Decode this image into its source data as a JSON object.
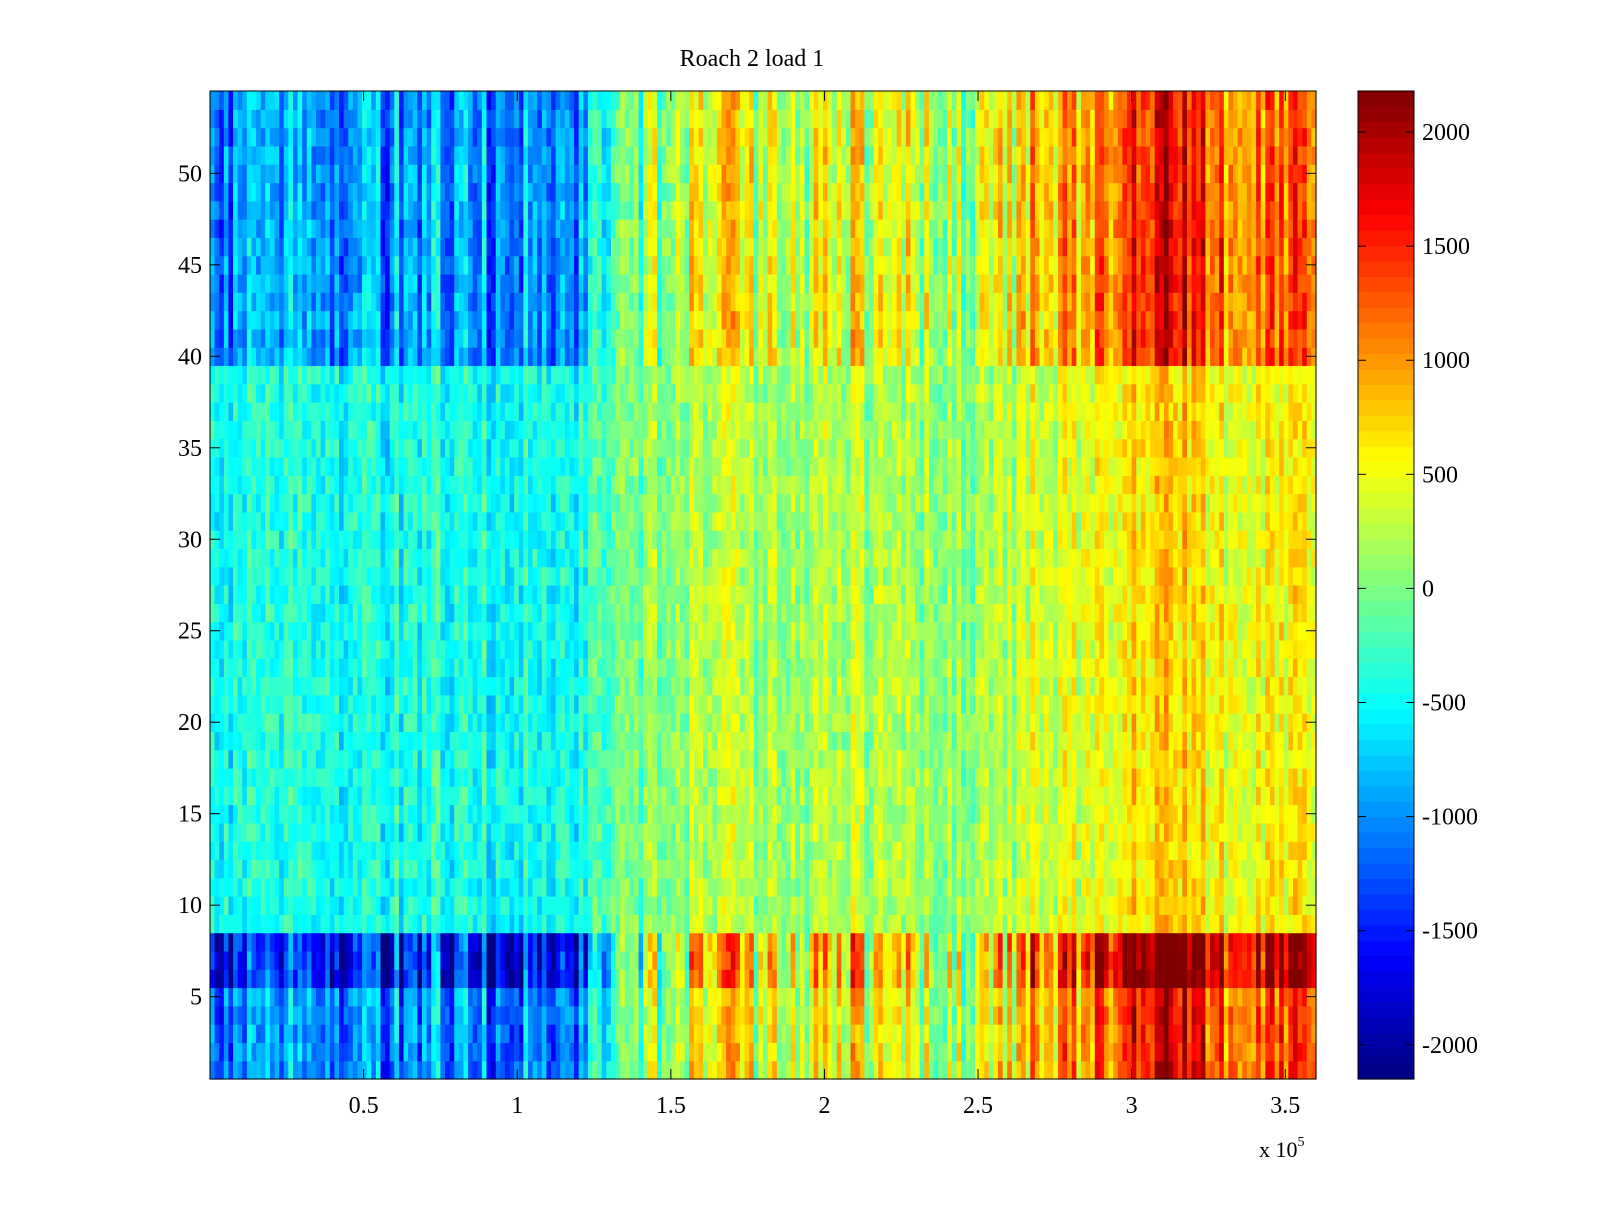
{
  "chart_data": {
    "type": "heatmap",
    "title": "Roach 2 load 1",
    "xlabel": "",
    "ylabel": "",
    "x_multiplier_label": "x 10",
    "x_multiplier_exponent": "5",
    "xlim": [
      0,
      3.6
    ],
    "ylim": [
      0.5,
      54.5
    ],
    "x_ticks": [
      {
        "value": 0.5,
        "label": "0.5"
      },
      {
        "value": 1,
        "label": "1"
      },
      {
        "value": 1.5,
        "label": "1.5"
      },
      {
        "value": 2,
        "label": "2"
      },
      {
        "value": 2.5,
        "label": "2.5"
      },
      {
        "value": 3,
        "label": "3"
      },
      {
        "value": 3.5,
        "label": "3.5"
      }
    ],
    "y_ticks": [
      {
        "value": 5,
        "label": "5"
      },
      {
        "value": 10,
        "label": "10"
      },
      {
        "value": 15,
        "label": "15"
      },
      {
        "value": 20,
        "label": "20"
      },
      {
        "value": 25,
        "label": "25"
      },
      {
        "value": 30,
        "label": "30"
      },
      {
        "value": 35,
        "label": "35"
      },
      {
        "value": 40,
        "label": "40"
      },
      {
        "value": 45,
        "label": "45"
      },
      {
        "value": 50,
        "label": "50"
      }
    ],
    "rows": 54,
    "x_column_centers": [
      0.1,
      0.3,
      0.5,
      0.7,
      0.9,
      1.1,
      1.3,
      1.5,
      1.7,
      1.9,
      2.1,
      2.3,
      2.5,
      2.7,
      2.9,
      3.1,
      3.3,
      3.5
    ],
    "column_means": [
      -900,
      -850,
      -800,
      -750,
      -800,
      -850,
      -500,
      300,
      400,
      250,
      400,
      250,
      150,
      700,
      850,
      1600,
      900,
      1200
    ],
    "row_band_offsets": [
      {
        "rows": [
          6,
          8
        ],
        "offset_factor": 1.9
      },
      {
        "rows": [
          1,
          5
        ],
        "offset_factor": 1.3
      },
      {
        "rows": [
          40,
          54
        ],
        "offset_factor": 1.2
      },
      {
        "rows": [
          9,
          39
        ],
        "offset_factor": 0.55
      }
    ],
    "colorbar": {
      "colormap": "jet",
      "clim": [
        -2150,
        2180
      ],
      "ticks": [
        {
          "value": 2000,
          "label": "2000"
        },
        {
          "value": 1500,
          "label": "1500"
        },
        {
          "value": 1000,
          "label": "1000"
        },
        {
          "value": 500,
          "label": "500"
        },
        {
          "value": 0,
          "label": "0"
        },
        {
          "value": -500,
          "label": "-500"
        },
        {
          "value": -1000,
          "label": "-1000"
        },
        {
          "value": -1500,
          "label": "-1500"
        },
        {
          "value": -2000,
          "label": "-2000"
        }
      ]
    },
    "grid": false
  }
}
